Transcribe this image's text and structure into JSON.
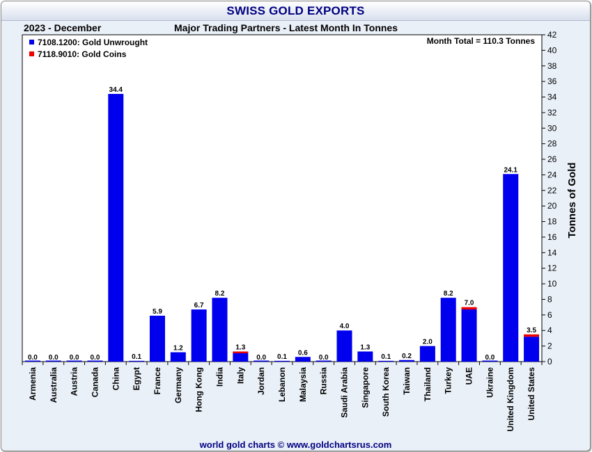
{
  "header": {
    "title": "SWISS GOLD EXPORTS",
    "period": "2023 - December",
    "subtitle": "Major Trading Partners - Latest Month In Tonnes"
  },
  "footer": "world gold charts © www.goldchartsrus.com",
  "colors": {
    "unwrought": "#0000ee",
    "coins": "#ee0000",
    "title": "#000080"
  },
  "chart_data": {
    "type": "bar",
    "stacked": true,
    "title": "SWISS GOLD EXPORTS",
    "subtitle": "Major Trading Partners - Latest Month In Tonnes",
    "ylabel": "Tonnes of Gold",
    "ylim": [
      0,
      42
    ],
    "y_ticks": [
      0,
      2,
      4,
      6,
      8,
      10,
      12,
      14,
      16,
      18,
      20,
      22,
      24,
      26,
      28,
      30,
      32,
      34,
      36,
      38,
      40,
      42
    ],
    "y_axis_side": "right",
    "legend_position": "top-left",
    "annotation": "Month Total = 110.3 Tonnes",
    "categories": [
      "Armenia",
      "Australia",
      "Austria",
      "Canada",
      "China",
      "Egypt",
      "France",
      "Germany",
      "Hong Kong",
      "India",
      "Italy",
      "Jordan",
      "Lebanon",
      "Malaysia",
      "Russia",
      "Saudi Arabia",
      "Singapore",
      "South Korea",
      "Taiwan",
      "Thailand",
      "Turkey",
      "UAE",
      "Ukraine",
      "United Kingdom",
      "United States"
    ],
    "series": [
      {
        "name": "7108.1200: Gold Unwrought",
        "color": "#0000ee",
        "values": [
          0.0,
          0.0,
          0.0,
          0.0,
          34.4,
          0.1,
          5.9,
          1.2,
          6.7,
          8.2,
          1.1,
          0.0,
          0.1,
          0.6,
          0.0,
          4.0,
          1.3,
          0.1,
          0.2,
          2.0,
          8.2,
          6.7,
          0.0,
          24.1,
          3.2
        ]
      },
      {
        "name": "7118.9010: Gold Coins",
        "color": "#ee0000",
        "values": [
          0.0,
          0.0,
          0.0,
          0.0,
          0.0,
          0.0,
          0.0,
          0.0,
          0.0,
          0.0,
          0.2,
          0.0,
          0.0,
          0.0,
          0.0,
          0.0,
          0.0,
          0.0,
          0.0,
          0.0,
          0.0,
          0.3,
          0.0,
          0.0,
          0.3
        ]
      }
    ],
    "totals": [
      "0.0",
      "0.0",
      "0.0",
      "0.0",
      "34.4",
      "0.1",
      "5.9",
      "1.2",
      "6.7",
      "8.2",
      "1.3",
      "0.0",
      "0.1",
      "0.6",
      "0.0",
      "4.0",
      "1.3",
      "0.1",
      "0.2",
      "2.0",
      "8.2",
      "7.0",
      "0.0",
      "24.1",
      "3.5"
    ]
  }
}
